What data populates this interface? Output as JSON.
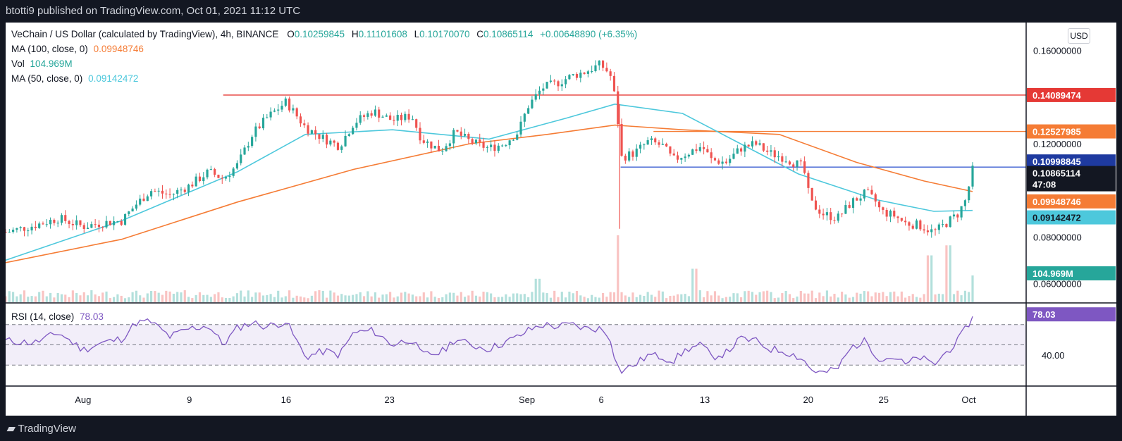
{
  "header": {
    "published": "btotti9 published on TradingView.com, Oct 01, 2021 11:12 UTC"
  },
  "footer": {
    "brand": "TradingView"
  },
  "legend": {
    "symbol": "VeChain / US Dollar (calculated by TradingView), 4h, BINANCE",
    "o_label": "O",
    "o": "0.10259845",
    "h_label": "H",
    "h": "0.11101608",
    "l_label": "L",
    "l": "0.10170070",
    "c_label": "C",
    "c": "0.10865114",
    "chg": "+0.00648890 (+6.35%)",
    "ma100_label": "MA (100, close, 0)",
    "ma100": "0.09948746",
    "vol_label": "Vol",
    "vol": "104.969M",
    "ma50_label": "MA (50, close, 0)",
    "ma50": "0.09142472",
    "rsi_label": "RSI (14, close)",
    "rsi": "78.03"
  },
  "scale": {
    "currency": "USD"
  },
  "colors": {
    "up": "#26a69a",
    "down": "#ef5350",
    "ma100": "#f57c35",
    "ma50": "#4dc8dc",
    "rsi": "#7e57c2",
    "resistance": "#e53935",
    "support": "#3e5fd3",
    "orange_level": "#f57c35"
  },
  "chart_data": [
    {
      "type": "candlestick",
      "title": "VeChain / US Dollar (calculated by TradingView), 4h, BINANCE",
      "timeframe": "4h",
      "x_ticks": [
        "Aug",
        "9",
        "16",
        "23",
        "Sep",
        "6",
        "13",
        "20",
        "25",
        "Oct"
      ],
      "y_ticks": [
        0.16,
        0.12,
        0.08,
        0.06
      ],
      "y_tick_labels": [
        "0.16000000",
        "0.12000000",
        "0.08000000",
        "0.06000000"
      ],
      "ylim": [
        0.052,
        0.172
      ],
      "ohlc_last": {
        "open": 0.10259845,
        "high": 0.11101608,
        "low": 0.1017007,
        "close": 0.10865114,
        "change": 0.0064889,
        "change_pct": 6.35
      },
      "price_path": [
        {
          "x": 0.0,
          "y": 0.082
        },
        {
          "x": 3.0,
          "y": 0.085
        },
        {
          "x": 5.5,
          "y": 0.088
        },
        {
          "x": 8.0,
          "y": 0.0845
        },
        {
          "x": 10.0,
          "y": 0.086
        },
        {
          "x": 12.0,
          "y": 0.087
        },
        {
          "x": 13.5,
          "y": 0.094
        },
        {
          "x": 15.0,
          "y": 0.1
        },
        {
          "x": 17.0,
          "y": 0.098
        },
        {
          "x": 19.0,
          "y": 0.102
        },
        {
          "x": 21.0,
          "y": 0.108
        },
        {
          "x": 22.5,
          "y": 0.105
        },
        {
          "x": 24.0,
          "y": 0.111
        },
        {
          "x": 25.5,
          "y": 0.124
        },
        {
          "x": 27.0,
          "y": 0.131
        },
        {
          "x": 29.0,
          "y": 0.138
        },
        {
          "x": 31.0,
          "y": 0.127
        },
        {
          "x": 33.0,
          "y": 0.122
        },
        {
          "x": 34.5,
          "y": 0.119
        },
        {
          "x": 36.0,
          "y": 0.129
        },
        {
          "x": 38.0,
          "y": 0.134
        },
        {
          "x": 40.0,
          "y": 0.13
        },
        {
          "x": 42.0,
          "y": 0.132
        },
        {
          "x": 43.0,
          "y": 0.122
        },
        {
          "x": 45.0,
          "y": 0.117
        },
        {
          "x": 46.5,
          "y": 0.125
        },
        {
          "x": 48.0,
          "y": 0.121
        },
        {
          "x": 50.0,
          "y": 0.118
        },
        {
          "x": 51.5,
          "y": 0.12
        },
        {
          "x": 53.0,
          "y": 0.125
        },
        {
          "x": 54.0,
          "y": 0.136
        },
        {
          "x": 55.5,
          "y": 0.144
        },
        {
          "x": 57.0,
          "y": 0.146
        },
        {
          "x": 58.5,
          "y": 0.149
        },
        {
          "x": 60.0,
          "y": 0.151
        },
        {
          "x": 61.5,
          "y": 0.154
        },
        {
          "x": 62.5,
          "y": 0.15
        },
        {
          "x": 63.2,
          "y": 0.136
        },
        {
          "x": 63.6,
          "y": 0.114
        },
        {
          "x": 65.0,
          "y": 0.116
        },
        {
          "x": 66.5,
          "y": 0.121
        },
        {
          "x": 68.0,
          "y": 0.119
        },
        {
          "x": 69.0,
          "y": 0.113
        },
        {
          "x": 70.5,
          "y": 0.116
        },
        {
          "x": 72.0,
          "y": 0.119
        },
        {
          "x": 73.0,
          "y": 0.113
        },
        {
          "x": 74.5,
          "y": 0.112
        },
        {
          "x": 76.0,
          "y": 0.118
        },
        {
          "x": 77.5,
          "y": 0.12
        },
        {
          "x": 79.0,
          "y": 0.116
        },
        {
          "x": 80.5,
          "y": 0.114
        },
        {
          "x": 82.5,
          "y": 0.11
        },
        {
          "x": 83.2,
          "y": 0.095
        },
        {
          "x": 84.5,
          "y": 0.09
        },
        {
          "x": 86.0,
          "y": 0.088
        },
        {
          "x": 87.5,
          "y": 0.095
        },
        {
          "x": 89.0,
          "y": 0.099
        },
        {
          "x": 90.0,
          "y": 0.095
        },
        {
          "x": 90.5,
          "y": 0.091
        },
        {
          "x": 92.0,
          "y": 0.089
        },
        {
          "x": 93.0,
          "y": 0.086
        },
        {
          "x": 94.5,
          "y": 0.085
        },
        {
          "x": 96.0,
          "y": 0.082
        },
        {
          "x": 97.0,
          "y": 0.085
        },
        {
          "x": 98.5,
          "y": 0.09
        },
        {
          "x": 99.3,
          "y": 0.096
        },
        {
          "x": 100.0,
          "y": 0.1087
        }
      ],
      "ma100_path": [
        {
          "x": 0.0,
          "y": 0.069
        },
        {
          "x": 12.0,
          "y": 0.079
        },
        {
          "x": 24.0,
          "y": 0.095
        },
        {
          "x": 36.0,
          "y": 0.109
        },
        {
          "x": 48.0,
          "y": 0.12
        },
        {
          "x": 56.0,
          "y": 0.124
        },
        {
          "x": 63.0,
          "y": 0.128
        },
        {
          "x": 70.0,
          "y": 0.126
        },
        {
          "x": 80.0,
          "y": 0.124
        },
        {
          "x": 88.0,
          "y": 0.112
        },
        {
          "x": 95.0,
          "y": 0.104
        },
        {
          "x": 100.0,
          "y": 0.0995
        }
      ],
      "ma50_path": [
        {
          "x": 0.0,
          "y": 0.07
        },
        {
          "x": 12.0,
          "y": 0.087
        },
        {
          "x": 24.0,
          "y": 0.108
        },
        {
          "x": 31.0,
          "y": 0.124
        },
        {
          "x": 40.0,
          "y": 0.126
        },
        {
          "x": 50.0,
          "y": 0.122
        },
        {
          "x": 58.0,
          "y": 0.131
        },
        {
          "x": 63.0,
          "y": 0.137
        },
        {
          "x": 70.0,
          "y": 0.133
        },
        {
          "x": 76.0,
          "y": 0.12
        },
        {
          "x": 82.0,
          "y": 0.107
        },
        {
          "x": 90.0,
          "y": 0.096
        },
        {
          "x": 96.0,
          "y": 0.091
        },
        {
          "x": 100.0,
          "y": 0.0914
        }
      ],
      "vol_spikes": [
        {
          "x": 63.3,
          "v": 1.0
        },
        {
          "x": 71.2,
          "v": 0.5
        },
        {
          "x": 55.0,
          "v": 0.35
        },
        {
          "x": 95.5,
          "v": 0.7
        },
        {
          "x": 97.5,
          "v": 0.85
        },
        {
          "x": 100.0,
          "v": 0.4
        }
      ],
      "levels": [
        {
          "name": "resistance",
          "value": 0.14089474,
          "label": "0.14089474",
          "x_start": 22.5,
          "line": "#e53935"
        },
        {
          "name": "orange",
          "value": 0.12527985,
          "label": "0.12527985",
          "x_start": 67.0,
          "line": "#f57c35"
        },
        {
          "name": "support",
          "value": 0.10998845,
          "label": "0.10998845",
          "x_start": 63.6,
          "line": "#3e5fd3"
        }
      ],
      "current_price": {
        "value": 0.10865114,
        "label": "0.10865114",
        "countdown": "47:08"
      },
      "ma100_last": {
        "value": 0.09948746,
        "label": "0.09948746"
      },
      "ma50_last": {
        "value": 0.09142472,
        "label": "0.09142472"
      },
      "volume_last": {
        "label": "104.969M"
      }
    },
    {
      "type": "line",
      "title": "RSI (14, close)",
      "y_ticks": [
        40.0
      ],
      "y_tick_labels": [
        "40.00"
      ],
      "ylim": [
        10,
        90
      ],
      "bands": [
        30,
        50,
        70
      ],
      "last": {
        "value": 78.03,
        "label": "78.03"
      },
      "series": [
        {
          "x": 0,
          "y": 54
        },
        {
          "x": 3,
          "y": 52
        },
        {
          "x": 5.5,
          "y": 62
        },
        {
          "x": 8,
          "y": 45
        },
        {
          "x": 10,
          "y": 52
        },
        {
          "x": 12,
          "y": 56
        },
        {
          "x": 13.5,
          "y": 72
        },
        {
          "x": 15,
          "y": 73
        },
        {
          "x": 17,
          "y": 58
        },
        {
          "x": 19,
          "y": 66
        },
        {
          "x": 21,
          "y": 69
        },
        {
          "x": 22.5,
          "y": 50
        },
        {
          "x": 24,
          "y": 67
        },
        {
          "x": 25.5,
          "y": 72
        },
        {
          "x": 27,
          "y": 68
        },
        {
          "x": 29,
          "y": 73
        },
        {
          "x": 31,
          "y": 38
        },
        {
          "x": 33,
          "y": 44
        },
        {
          "x": 34.5,
          "y": 40
        },
        {
          "x": 36,
          "y": 62
        },
        {
          "x": 38,
          "y": 64
        },
        {
          "x": 40,
          "y": 50
        },
        {
          "x": 42,
          "y": 56
        },
        {
          "x": 43,
          "y": 40
        },
        {
          "x": 45,
          "y": 42
        },
        {
          "x": 46.5,
          "y": 56
        },
        {
          "x": 48,
          "y": 50
        },
        {
          "x": 50,
          "y": 46
        },
        {
          "x": 51.5,
          "y": 52
        },
        {
          "x": 53,
          "y": 58
        },
        {
          "x": 54,
          "y": 64
        },
        {
          "x": 55.5,
          "y": 70
        },
        {
          "x": 57,
          "y": 68
        },
        {
          "x": 58.5,
          "y": 70
        },
        {
          "x": 60,
          "y": 66
        },
        {
          "x": 61.5,
          "y": 66
        },
        {
          "x": 62.5,
          "y": 58
        },
        {
          "x": 63.2,
          "y": 30
        },
        {
          "x": 63.6,
          "y": 24
        },
        {
          "x": 65,
          "y": 30
        },
        {
          "x": 66.5,
          "y": 40
        },
        {
          "x": 68,
          "y": 38
        },
        {
          "x": 69,
          "y": 34
        },
        {
          "x": 70.5,
          "y": 46
        },
        {
          "x": 72,
          "y": 50
        },
        {
          "x": 73,
          "y": 38
        },
        {
          "x": 74.5,
          "y": 42
        },
        {
          "x": 76,
          "y": 56
        },
        {
          "x": 77.5,
          "y": 54
        },
        {
          "x": 79,
          "y": 46
        },
        {
          "x": 80.5,
          "y": 44
        },
        {
          "x": 82.5,
          "y": 36
        },
        {
          "x": 83.2,
          "y": 26
        },
        {
          "x": 84.5,
          "y": 22
        },
        {
          "x": 86,
          "y": 26
        },
        {
          "x": 87.5,
          "y": 48
        },
        {
          "x": 89,
          "y": 54
        },
        {
          "x": 90,
          "y": 40
        },
        {
          "x": 90.5,
          "y": 36
        },
        {
          "x": 92,
          "y": 38
        },
        {
          "x": 93,
          "y": 30
        },
        {
          "x": 94.5,
          "y": 38
        },
        {
          "x": 96,
          "y": 30
        },
        {
          "x": 97,
          "y": 40
        },
        {
          "x": 98.5,
          "y": 54
        },
        {
          "x": 99.3,
          "y": 66
        },
        {
          "x": 100,
          "y": 78
        }
      ]
    }
  ]
}
